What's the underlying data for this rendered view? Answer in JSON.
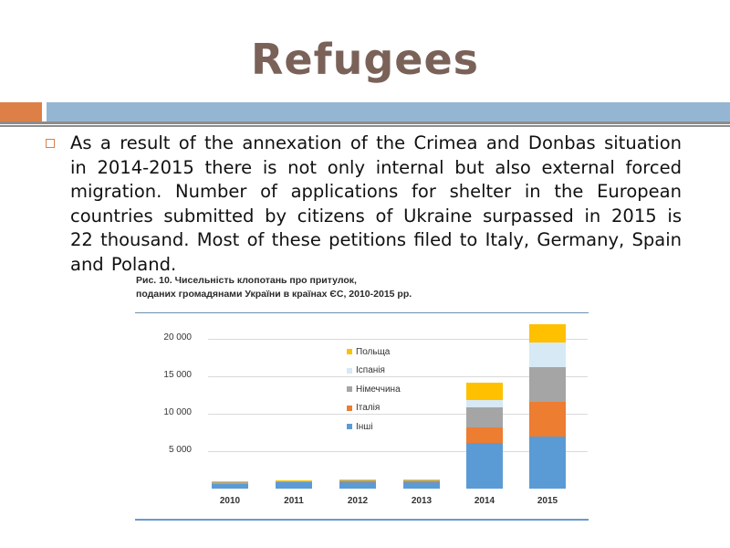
{
  "slide": {
    "title": "Refugees",
    "colors": {
      "title": "#7a6259",
      "accent_orange": "#dd8047",
      "accent_blue": "#94b6d2",
      "rule": "#8c8c8c"
    },
    "bullets": [
      "As a result of the annexation of the Crimea and Donbas situation in 2014-2015  there is not only internal but also external forced migration. Number of applications for shelter in the European countries submitted by citizens of Ukraine surpassed in 2015 is 22 thousand. Most of these petitions filed to Italy, Germany, Spain and Poland."
    ]
  },
  "chart": {
    "title_line1": "Рис. 10. Чисельність клопотань про притулок,",
    "title_line2": "поданих громадянами України в країнах ЄС, 2010-2015 рр."
  },
  "chart_data": {
    "type": "bar",
    "stacked": true,
    "title": "Рис. 10. Чисельність клопотань про притулок, поданих громадянами України в країнах ЄС, 2010-2015 рр.",
    "xlabel": "",
    "ylabel": "",
    "categories": [
      "2010",
      "2011",
      "2012",
      "2013",
      "2014",
      "2015"
    ],
    "yticks": [
      "5 000",
      "10 000",
      "15 000",
      "20 000"
    ],
    "ylim": [
      0,
      22000
    ],
    "grid": true,
    "legend_position": "inside-center",
    "series": [
      {
        "name": "Інші",
        "color": "#5b9bd5",
        "values": [
          600,
          800,
          900,
          900,
          6100,
          7000
        ]
      },
      {
        "name": "Італія",
        "color": "#ed7d31",
        "values": [
          50,
          50,
          50,
          50,
          2100,
          4600
        ]
      },
      {
        "name": "Німеччина",
        "color": "#a5a5a5",
        "values": [
          150,
          100,
          100,
          100,
          2600,
          4600
        ]
      },
      {
        "name": "Іспанія",
        "color": "#d6e9f5",
        "values": [
          20,
          20,
          50,
          50,
          1000,
          3300
        ]
      },
      {
        "name": "Польща",
        "color": "#ffc000",
        "values": [
          100,
          100,
          150,
          150,
          2300,
          2400
        ]
      }
    ],
    "legend_order": [
      "Польща",
      "Іспанія",
      "Німеччина",
      "Італія",
      "Інші"
    ]
  }
}
